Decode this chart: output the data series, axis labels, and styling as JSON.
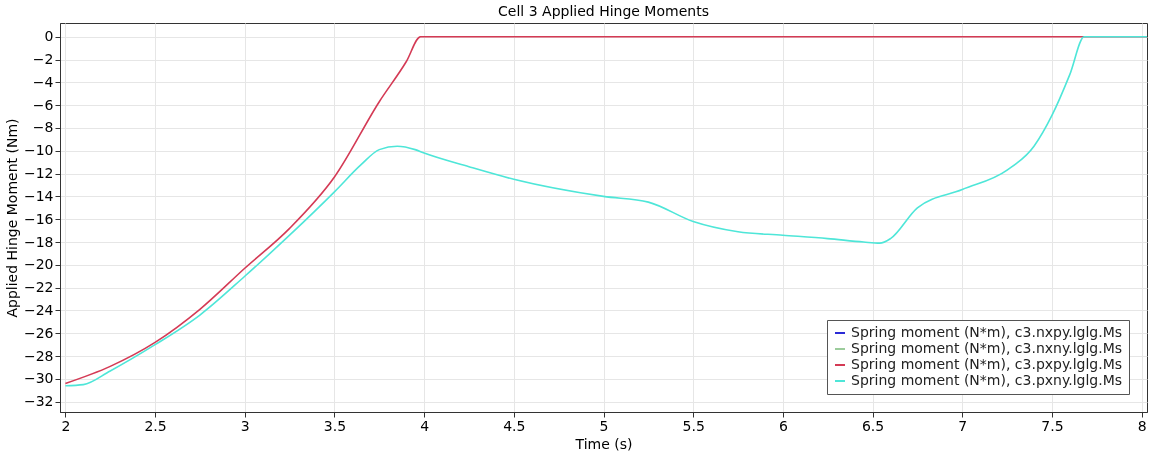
{
  "chart_data": {
    "type": "line",
    "title": "Cell 3 Applied Hinge Moments",
    "xlabel": "Time (s)",
    "ylabel": "Applied Hinge Moment (Nm)",
    "xlim": [
      1.97,
      8.03
    ],
    "ylim": [
      -32.9,
      1.2
    ],
    "xticks": [
      2,
      2.5,
      3,
      3.5,
      4,
      4.5,
      5,
      5.5,
      6,
      6.5,
      7,
      7.5,
      8
    ],
    "yticks": [
      0,
      -2,
      -4,
      -6,
      -8,
      -10,
      -12,
      -14,
      -16,
      -18,
      -20,
      -22,
      -24,
      -26,
      -28,
      -30,
      -32
    ],
    "grid": true,
    "legend": "bottom right",
    "line_style": "solid",
    "marker": "none",
    "series": [
      {
        "name": "Spring moment (N*m), c3.nxpy.lglg.Ms",
        "color": "#2b2bd6",
        "values": [
          null
        ]
      },
      {
        "name": "Spring moment (N*m), c3.nxny.lglg.Ms",
        "color": "#9ccc9c",
        "values": [
          null
        ]
      },
      {
        "name": "Spring moment (N*m), c3.pxpy.lglg.Ms",
        "color": "#d43a55",
        "x": [
          2,
          2.25,
          2.5,
          2.75,
          3,
          3.25,
          3.5,
          3.75,
          3.9,
          3.98,
          8.03
        ],
        "values": [
          -30.4,
          -28.9,
          -26.8,
          -23.9,
          -20.3,
          -16.8,
          -12.3,
          -5.7,
          -2.2,
          0,
          0
        ]
      },
      {
        "name": "Spring moment (N*m), c3.pxny.lglg.Ms",
        "color": "#4ee6d8",
        "x": [
          2,
          2.1,
          2.25,
          2.5,
          2.75,
          3,
          3.25,
          3.5,
          3.65,
          3.75,
          3.85,
          3.95,
          4,
          4.25,
          4.5,
          5,
          5.25,
          5.5,
          5.75,
          6,
          6.25,
          6.45,
          6.54,
          6.6,
          6.75,
          7,
          7.25,
          7.4,
          7.5,
          7.6,
          7.68,
          8.03
        ],
        "values": [
          -30.6,
          -30.5,
          -29.3,
          -27.0,
          -24.4,
          -21.0,
          -17.4,
          -13.6,
          -11.2,
          -9.9,
          -9.6,
          -9.9,
          -10.2,
          -11.4,
          -12.5,
          -14.0,
          -14.5,
          -16.2,
          -17.1,
          -17.4,
          -17.7,
          -18.0,
          -18.1,
          -17.7,
          -15.0,
          -13.4,
          -11.7,
          -9.6,
          -6.9,
          -3.3,
          0,
          0
        ]
      }
    ]
  }
}
